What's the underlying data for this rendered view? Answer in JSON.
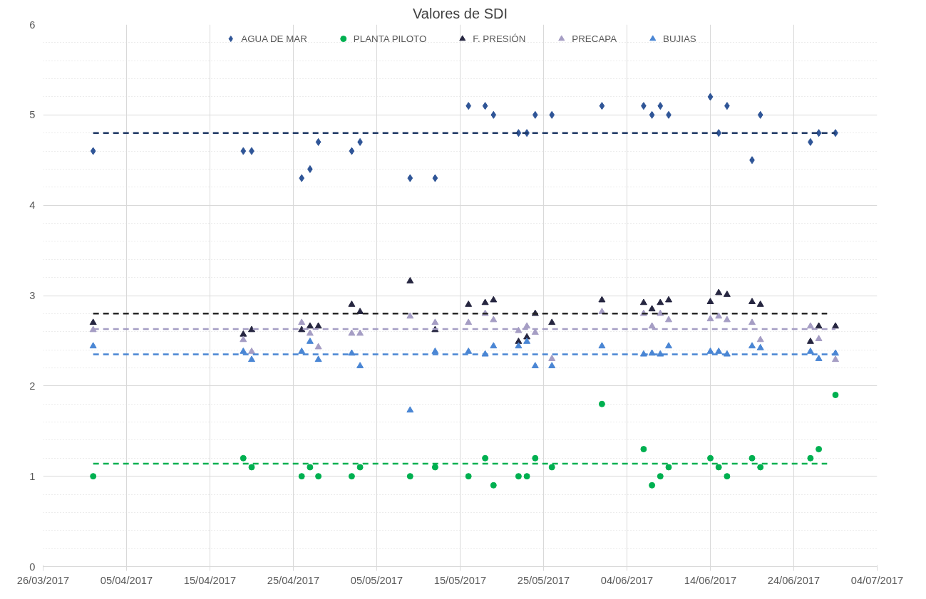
{
  "chart_data": {
    "type": "scatter",
    "title": "Valores de SDI",
    "x": [
      "2017-04-01",
      "2017-04-19",
      "2017-04-20",
      "2017-04-26",
      "2017-04-27",
      "2017-04-28",
      "2017-05-02",
      "2017-05-03",
      "2017-05-09",
      "2017-05-12",
      "2017-05-16",
      "2017-05-18",
      "2017-05-19",
      "2017-05-22",
      "2017-05-23",
      "2017-05-24",
      "2017-05-26",
      "2017-06-01",
      "2017-06-06",
      "2017-06-07",
      "2017-06-08",
      "2017-06-09",
      "2017-06-14",
      "2017-06-15",
      "2017-06-16",
      "2017-06-19",
      "2017-06-20",
      "2017-06-26",
      "2017-06-27",
      "2017-06-29"
    ],
    "series": [
      {
        "name": "AGUA DE MAR",
        "color": "#2f5597",
        "marker": "diamond",
        "values": [
          4.6,
          4.6,
          4.6,
          4.3,
          4.4,
          4.7,
          4.6,
          4.7,
          4.3,
          4.3,
          5.1,
          5.1,
          5.0,
          4.8,
          4.8,
          5.0,
          5.0,
          5.1,
          5.1,
          5.0,
          5.1,
          5.0,
          5.2,
          4.8,
          5.1,
          4.5,
          5.0,
          4.7,
          4.8,
          4.8
        ]
      },
      {
        "name": "PLANTA PILOTO",
        "color": "#00b050",
        "marker": "circle",
        "values": [
          1.0,
          1.2,
          1.1,
          1.0,
          1.1,
          1.0,
          1.0,
          1.1,
          1.0,
          1.1,
          1.0,
          1.2,
          0.9,
          1.0,
          1.0,
          1.2,
          1.1,
          1.8,
          1.3,
          0.9,
          1.0,
          1.1,
          1.2,
          1.1,
          1.0,
          1.2,
          1.1,
          1.2,
          1.3,
          1.9
        ]
      },
      {
        "name": "F. PRESIÓN",
        "color": "#262640",
        "marker": "triangle",
        "values": [
          2.7,
          2.57,
          2.62,
          2.62,
          2.66,
          2.66,
          2.9,
          2.82,
          3.16,
          2.62,
          2.9,
          2.92,
          2.95,
          2.49,
          2.54,
          2.8,
          2.7,
          2.95,
          2.92,
          2.85,
          2.92,
          2.95,
          2.93,
          3.03,
          3.01,
          2.93,
          2.9,
          2.49,
          2.66,
          2.66
        ]
      },
      {
        "name": "PRECAPA",
        "color": "#a59dc4",
        "marker": "triangle",
        "values": [
          2.62,
          2.51,
          2.38,
          2.7,
          2.58,
          2.43,
          2.58,
          2.58,
          2.77,
          2.7,
          2.7,
          2.8,
          2.73,
          2.61,
          2.66,
          2.59,
          2.3,
          2.82,
          2.8,
          2.66,
          2.8,
          2.73,
          2.74,
          2.77,
          2.73,
          2.7,
          2.51,
          2.66,
          2.52,
          2.29
        ]
      },
      {
        "name": "BUJIAS",
        "color": "#4a86d4",
        "marker": "triangle",
        "values": [
          2.44,
          2.38,
          2.29,
          2.38,
          2.49,
          2.29,
          2.36,
          2.22,
          1.73,
          2.38,
          2.38,
          2.35,
          2.44,
          2.44,
          2.49,
          2.22,
          2.22,
          2.44,
          2.35,
          2.36,
          2.35,
          2.44,
          2.38,
          2.38,
          2.35,
          2.44,
          2.42,
          2.38,
          2.3,
          2.36
        ]
      },
      {
        "type": "line",
        "line_style": "dashed",
        "color": "#1f3864",
        "x": [
          "2017-04-01",
          "2017-06-29"
        ],
        "values": [
          4.8,
          4.8
        ]
      },
      {
        "type": "line",
        "line_style": "dashed",
        "color": "#00b050",
        "x": [
          "2017-04-01",
          "2017-06-28"
        ],
        "values": [
          1.14,
          1.14
        ]
      },
      {
        "type": "line",
        "line_style": "dashed",
        "color": "#262626",
        "x": [
          "2017-04-01",
          "2017-06-28"
        ],
        "values": [
          2.8,
          2.8
        ]
      },
      {
        "type": "line",
        "line_style": "dashed",
        "color": "#a59dc4",
        "x": [
          "2017-04-01",
          "2017-06-29"
        ],
        "values": [
          2.63,
          2.63
        ]
      },
      {
        "type": "line",
        "line_style": "dashed",
        "color": "#4a86d4",
        "x": [
          "2017-04-01",
          "2017-06-29"
        ],
        "values": [
          2.35,
          2.35
        ]
      }
    ],
    "xlim": [
      "2017-03-26",
      "2017-07-04"
    ],
    "xticks": [
      {
        "value": "2017-03-26",
        "label": "26/03/2017"
      },
      {
        "value": "2017-04-05",
        "label": "05/04/2017"
      },
      {
        "value": "2017-04-15",
        "label": "15/04/2017"
      },
      {
        "value": "2017-04-25",
        "label": "25/04/2017"
      },
      {
        "value": "2017-05-05",
        "label": "05/05/2017"
      },
      {
        "value": "2017-05-15",
        "label": "15/05/2017"
      },
      {
        "value": "2017-05-25",
        "label": "25/05/2017"
      },
      {
        "value": "2017-06-04",
        "label": "04/06/2017"
      },
      {
        "value": "2017-06-14",
        "label": "14/06/2017"
      },
      {
        "value": "2017-06-24",
        "label": "24/06/2017"
      },
      {
        "value": "2017-07-04",
        "label": "04/07/2017"
      }
    ],
    "ylim": [
      0,
      6
    ],
    "yticks": [
      0,
      1,
      2,
      3,
      4,
      5,
      6
    ],
    "grid": true,
    "legend": "top"
  }
}
